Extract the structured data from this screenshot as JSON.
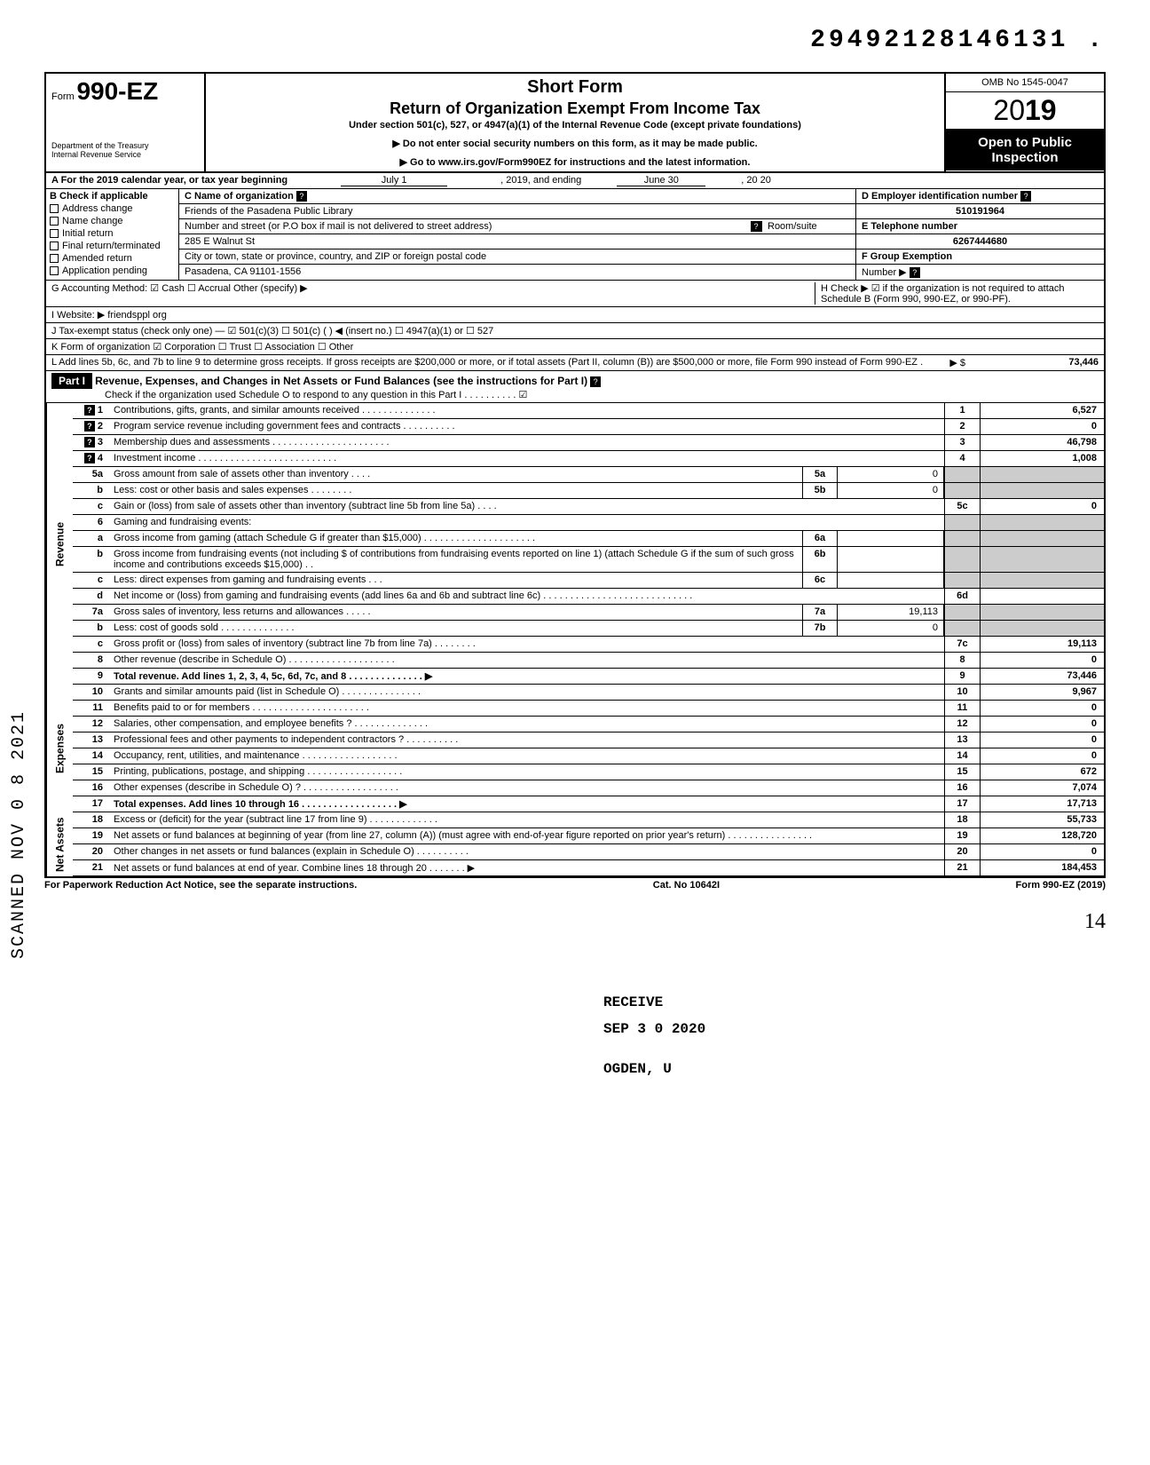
{
  "top_number": "29492128146131 .",
  "header": {
    "form_label": "Form",
    "form_number": "990-EZ",
    "dept": "Department of the Treasury\nInternal Revenue Service",
    "title1": "Short Form",
    "title2": "Return of Organization Exempt From Income Tax",
    "subtitle": "Under section 501(c), 527, or 4947(a)(1) of the Internal Revenue Code (except private foundations)",
    "note1": "▶ Do not enter social security numbers on this form, as it may be made public.",
    "note2": "▶ Go to www.irs.gov/Form990EZ for instructions and the latest information.",
    "omb": "OMB No 1545-0047",
    "year": "2019",
    "open_public": "Open to Public\nInspection"
  },
  "row_a": {
    "label": "A For the 2019 calendar year, or tax year beginning",
    "begin": "July 1",
    "mid": ", 2019, and ending",
    "end": "June 30",
    "end2": ", 20   20"
  },
  "section_b": {
    "title": "B Check if applicable",
    "items": [
      "Address change",
      "Name change",
      "Initial return",
      "Final return/terminated",
      "Amended return",
      "Application pending"
    ]
  },
  "section_c": {
    "label": "C Name of organization",
    "name": "Friends of the Pasadena Public Library",
    "street_label": "Number and street (or P.O  box if mail is not delivered to street address)",
    "room_label": "Room/suite",
    "street": "285 E Walnut St",
    "city_label": "City or town, state or province, country, and ZIP or foreign postal code",
    "city": "Pasadena, CA 91101-1556"
  },
  "section_d": {
    "label": "D Employer identification number",
    "value": "510191964"
  },
  "section_e": {
    "label": "E Telephone number",
    "value": "6267444680"
  },
  "section_f": {
    "label": "F Group Exemption",
    "label2": "Number ▶"
  },
  "line_g": "G Accounting Method:     ☑ Cash     ☐ Accrual     Other (specify) ▶",
  "line_h": "H Check ▶ ☑ if the organization is not required to attach Schedule B (Form 990, 990-EZ, or 990-PF).",
  "line_i": "I  Website: ▶      friendsppl org",
  "line_j": "J  Tax-exempt status (check only one) — ☑ 501(c)(3)   ☐ 501(c) (        ) ◀ (insert no.) ☐ 4947(a)(1) or   ☐ 527",
  "line_k": "K Form of organization   ☑ Corporation   ☐ Trust              ☐ Association      ☐ Other",
  "line_l": {
    "text": "L Add lines 5b, 6c, and 7b to line 9 to determine gross receipts. If gross receipts are $200,000 or more, or if total assets (Part II, column (B)) are $500,000 or more, file Form 990 instead of Form 990-EZ .",
    "arrow": "▶  $",
    "value": "73,446"
  },
  "part1": {
    "label": "Part I",
    "title": "Revenue, Expenses, and Changes in Net Assets or Fund Balances (see the instructions for Part I)",
    "check": "Check if the organization used Schedule O to respond to any question in this Part I  . . . . . . . . . . ☑"
  },
  "side_labels": {
    "revenue": "Revenue",
    "expenses": "Expenses",
    "netassets": "Net Assets"
  },
  "rows": [
    {
      "n": "1",
      "desc": "Contributions, gifts, grants, and similar amounts received . . . . . . . . . . . . . .",
      "c": "1",
      "v": "6,527",
      "help": true
    },
    {
      "n": "2",
      "desc": "Program service revenue including government fees and contracts  . . . . . . . . . .",
      "c": "2",
      "v": "0",
      "help": true
    },
    {
      "n": "3",
      "desc": "Membership dues and assessments . . . . . . . . . . . . . . . . . . . . . .",
      "c": "3",
      "v": "46,798",
      "help": true
    },
    {
      "n": "4",
      "desc": "Investment income   . . . . . . . . . . . . . . . . . . . . . . . . . .",
      "c": "4",
      "v": "1,008",
      "help": true
    },
    {
      "n": "5a",
      "desc": "Gross amount from sale of assets other than inventory  . . . .",
      "mn": "5a",
      "mv": "0"
    },
    {
      "n": "b",
      "desc": "Less: cost or other basis and sales expenses . . . . . . . .",
      "mn": "5b",
      "mv": "0"
    },
    {
      "n": "c",
      "desc": "Gain or (loss) from sale of assets other than inventory (subtract line 5b from line 5a)  . . . .",
      "c": "5c",
      "v": "0"
    },
    {
      "n": "6",
      "desc": "Gaming and fundraising events:"
    },
    {
      "n": "a",
      "desc": "Gross income from gaming (attach Schedule G if greater than $15,000) . . . . . . . . . . . . . . . . . . . . .",
      "mn": "6a",
      "mv": ""
    },
    {
      "n": "b",
      "desc": "Gross income from fundraising events (not including  $                    of contributions from fundraising events reported on line 1) (attach Schedule G if the sum of such gross income and contributions exceeds $15,000) . .",
      "mn": "6b",
      "mv": ""
    },
    {
      "n": "c",
      "desc": "Less: direct expenses from gaming and fundraising events  . . .",
      "mn": "6c",
      "mv": ""
    },
    {
      "n": "d",
      "desc": "Net income or (loss) from gaming and fundraising events (add lines 6a and 6b and subtract line 6c)   . . . . . . . . . . . . . . . . . . . . . . . . . . . .",
      "c": "6d",
      "v": ""
    },
    {
      "n": "7a",
      "desc": "Gross sales of inventory, less returns and allowances . . . . .",
      "mn": "7a",
      "mv": "19,113"
    },
    {
      "n": "b",
      "desc": "Less: cost of goods sold   . . . . . . . . . . . . . .",
      "mn": "7b",
      "mv": "0"
    },
    {
      "n": "c",
      "desc": "Gross profit or (loss) from sales of inventory (subtract line 7b from line 7a)  . . . . . . . .",
      "c": "7c",
      "v": "19,113"
    },
    {
      "n": "8",
      "desc": "Other revenue (describe in Schedule O) . . . . . . . . . . . . . . . . . . . .",
      "c": "8",
      "v": "0"
    },
    {
      "n": "9",
      "desc": "Total revenue. Add lines 1, 2, 3, 4, 5c, 6d, 7c, and 8  . . . . . . . . . . . . . . ▶",
      "c": "9",
      "v": "73,446",
      "bold": true
    }
  ],
  "exp_rows": [
    {
      "n": "10",
      "desc": "Grants and similar amounts paid (list in Schedule O)  . . . . . . . . . . . . . . .",
      "c": "10",
      "v": "9,967"
    },
    {
      "n": "11",
      "desc": "Benefits paid to or for members  . . . . . . . . . . . . . . . . . . . . . .",
      "c": "11",
      "v": "0"
    },
    {
      "n": "12",
      "desc": "Salaries, other compensation, and employee benefits ? . . . . . . . . . . . . . .",
      "c": "12",
      "v": "0"
    },
    {
      "n": "13",
      "desc": "Professional fees and other payments to independent contractors ? . . . . . . . . . .",
      "c": "13",
      "v": "0"
    },
    {
      "n": "14",
      "desc": "Occupancy, rent, utilities, and maintenance   . . . . . . . . . . . . . . . . . .",
      "c": "14",
      "v": "0"
    },
    {
      "n": "15",
      "desc": "Printing, publications, postage, and shipping . . . . . . . . . . . . . . . . . .",
      "c": "15",
      "v": "672"
    },
    {
      "n": "16",
      "desc": "Other expenses (describe in Schedule O) ?  . . . . . . . . . . . . . . . . . .",
      "c": "16",
      "v": "7,074"
    },
    {
      "n": "17",
      "desc": "Total expenses. Add lines 10 through 16 . . . . . . . . . . . . . . . . . . ▶",
      "c": "17",
      "v": "17,713",
      "bold": true
    }
  ],
  "na_rows": [
    {
      "n": "18",
      "desc": "Excess or (deficit) for the year (subtract line 17 from line 9)   . . . . . . . . . . . . .",
      "c": "18",
      "v": "55,733"
    },
    {
      "n": "19",
      "desc": "Net assets or fund balances at beginning of year (from line 27, column (A)) (must agree with end-of-year figure reported on prior year's return)   . . . . . . . . . . . . . . . .",
      "c": "19",
      "v": "128,720"
    },
    {
      "n": "20",
      "desc": "Other changes in net assets or fund balances (explain in Schedule O) . . . . . . . . . .",
      "c": "20",
      "v": "0"
    },
    {
      "n": "21",
      "desc": "Net assets or fund balances at end of year. Combine lines 18 through 20  . . . . . . . ▶",
      "c": "21",
      "v": "184,453"
    }
  ],
  "footer": {
    "left": "For Paperwork Reduction Act Notice, see the separate instructions.",
    "center": "Cat. No  10642I",
    "right": "Form 990-EZ (2019)"
  },
  "scanned": "SCANNED NOV 0 8 2021",
  "stamps": {
    "receive": "RECEIVE",
    "date": "SEP 3 0 2020",
    "ogden": "OGDEN, U"
  },
  "page_num": "14",
  "colors": {
    "black": "#000000",
    "white": "#ffffff",
    "shade": "#cccccc"
  }
}
